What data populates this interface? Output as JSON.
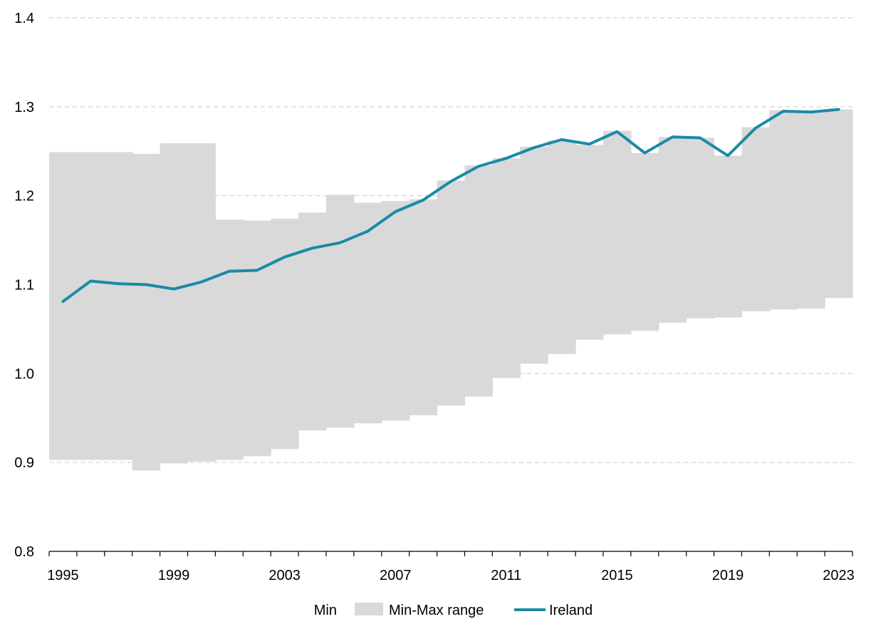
{
  "chart_data": {
    "type": "area",
    "x": [
      1995,
      1996,
      1997,
      1998,
      1999,
      2000,
      2001,
      2002,
      2003,
      2004,
      2005,
      2006,
      2007,
      2008,
      2009,
      2010,
      2011,
      2012,
      2013,
      2014,
      2015,
      2016,
      2017,
      2018,
      2019,
      2020,
      2021,
      2022,
      2023
    ],
    "x_tick_labels": [
      "1995",
      "1999",
      "2003",
      "2007",
      "2011",
      "2015",
      "2019",
      "2023"
    ],
    "ylim": [
      0.8,
      1.4
    ],
    "y_ticks": [
      0.8,
      0.9,
      1.0,
      1.1,
      1.2,
      1.3,
      1.4
    ],
    "y_tick_labels": [
      "0.8",
      "0.9",
      "1.0",
      "1.1",
      "1.2",
      "1.3",
      "1.4"
    ],
    "grid": "horizontal dashed",
    "legend_position": "bottom",
    "colors": {
      "range": "#d9d9d9",
      "ireland": "#1a8aa5",
      "grid": "#d0d0d0",
      "axis": "#000000"
    },
    "series": [
      {
        "name": "Min",
        "values": [
          0.903,
          0.903,
          0.903,
          0.891,
          0.899,
          0.901,
          0.903,
          0.907,
          0.915,
          0.936,
          0.939,
          0.944,
          0.947,
          0.953,
          0.964,
          0.974,
          0.995,
          1.011,
          1.022,
          1.038,
          1.044,
          1.048,
          1.057,
          1.062,
          1.063,
          1.07,
          1.072,
          1.073,
          1.085
        ]
      },
      {
        "name": "Min-Max range",
        "values": [
          0.346,
          0.346,
          0.346,
          0.356,
          0.36,
          0.358,
          0.27,
          0.265,
          0.259,
          0.245,
          0.262,
          0.248,
          0.247,
          0.243,
          0.253,
          0.26,
          0.247,
          0.244,
          0.24,
          0.219,
          0.229,
          0.2,
          0.209,
          0.203,
          0.182,
          0.207,
          0.224,
          0.223,
          0.212
        ]
      },
      {
        "name": "Ireland",
        "values": [
          1.081,
          1.104,
          1.101,
          1.1,
          1.095,
          1.103,
          1.115,
          1.116,
          1.131,
          1.141,
          1.147,
          1.16,
          1.182,
          1.195,
          1.216,
          1.233,
          1.242,
          1.254,
          1.263,
          1.258,
          1.272,
          1.248,
          1.266,
          1.265,
          1.245,
          1.276,
          1.295,
          1.294,
          1.297
        ]
      }
    ]
  }
}
